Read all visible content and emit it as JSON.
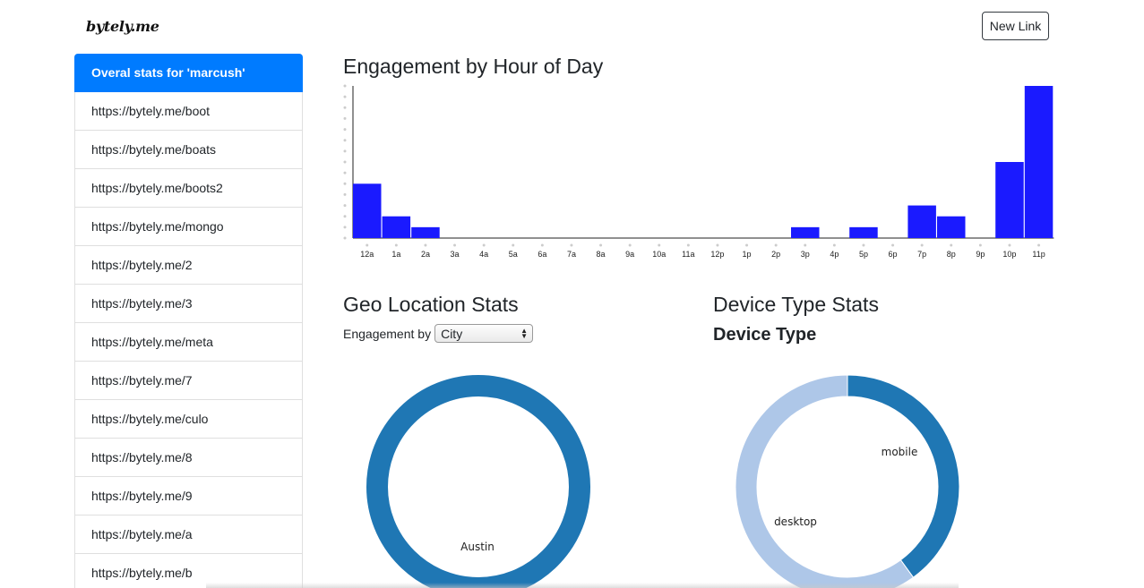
{
  "header": {
    "brand": "bytely.me",
    "new_link_label": "New Link"
  },
  "sidebar": {
    "items": [
      {
        "label": "Overal stats for 'marcush'",
        "active": true
      },
      {
        "label": "https://bytely.me/boot"
      },
      {
        "label": "https://bytely.me/boats"
      },
      {
        "label": "https://bytely.me/boots2"
      },
      {
        "label": "https://bytely.me/mongo"
      },
      {
        "label": "https://bytely.me/2"
      },
      {
        "label": "https://bytely.me/3"
      },
      {
        "label": "https://bytely.me/meta"
      },
      {
        "label": "https://bytely.me/7"
      },
      {
        "label": "https://bytely.me/culo"
      },
      {
        "label": "https://bytely.me/8"
      },
      {
        "label": "https://bytely.me/9"
      },
      {
        "label": "https://bytely.me/a"
      },
      {
        "label": "https://bytely.me/b"
      }
    ]
  },
  "engagement": {
    "title": "Engagement by Hour of Day"
  },
  "geo": {
    "title": "Geo Location Stats",
    "engagement_by_label": "Engagement by",
    "select_value": "City"
  },
  "device": {
    "title": "Device Type Stats",
    "subtitle": "Device Type"
  },
  "colors": {
    "bar": "#1a1aff",
    "donut_dark": "#1f77b4",
    "donut_light": "#aec7e8",
    "active_item": "#007bff"
  },
  "chart_data": [
    {
      "type": "bar",
      "title": "Engagement by Hour of Day",
      "categories": [
        "12a",
        "1a",
        "2a",
        "3a",
        "4a",
        "5a",
        "6a",
        "7a",
        "8a",
        "9a",
        "10a",
        "11a",
        "12p",
        "1p",
        "2p",
        "3p",
        "4p",
        "5p",
        "6p",
        "7p",
        "8p",
        "9p",
        "10p",
        "11p"
      ],
      "values": [
        5,
        2,
        1,
        0,
        0,
        0,
        0,
        0,
        0,
        0,
        0,
        0,
        0,
        0,
        0,
        1,
        0,
        1,
        0,
        3,
        2,
        0,
        7,
        14
      ],
      "ylim": [
        0,
        14
      ]
    },
    {
      "type": "pie",
      "title": "Geo Location Stats",
      "labels": [
        "Austin"
      ],
      "values": [
        100
      ]
    },
    {
      "type": "pie",
      "title": "Device Type",
      "labels": [
        "mobile",
        "desktop"
      ],
      "values": [
        40,
        60
      ]
    }
  ]
}
